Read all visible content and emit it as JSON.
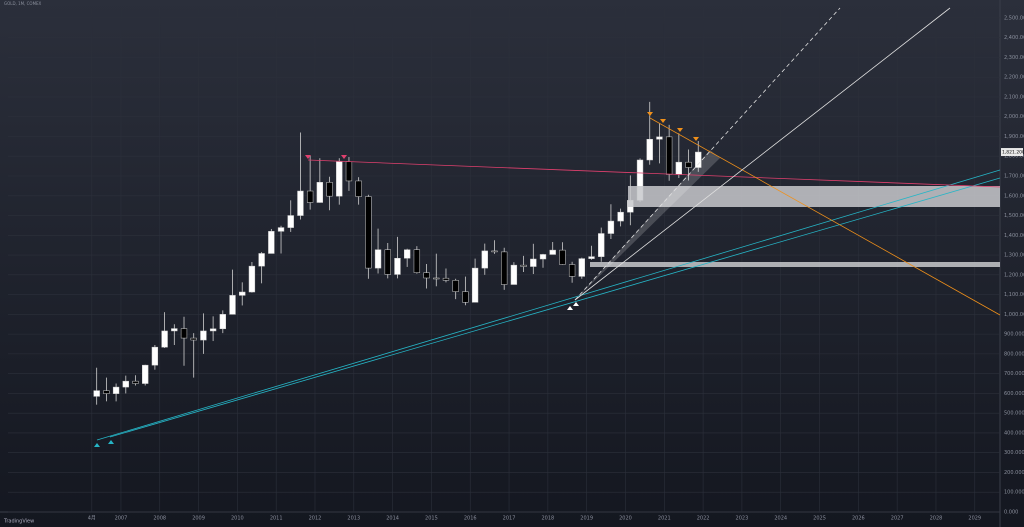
{
  "header": {
    "title": "GOLD, 1M, COMEX",
    "source": "TradingView"
  },
  "chart_data": {
    "type": "candlestick",
    "x": [
      2006.25,
      2006.5,
      2006.75,
      2007,
      2007.25,
      2007.5,
      2007.75,
      2008,
      2008.25,
      2008.5,
      2008.75,
      2009,
      2009.25,
      2009.5,
      2009.75,
      2010,
      2010.25,
      2010.5,
      2010.75,
      2011,
      2011.25,
      2011.5,
      2011.75,
      2012,
      2012.25,
      2012.5,
      2012.75,
      2013,
      2013.25,
      2013.5,
      2013.75,
      2014,
      2014.25,
      2014.5,
      2014.75,
      2015,
      2015.25,
      2015.5,
      2015.75,
      2016,
      2016.25,
      2016.5,
      2016.75,
      2017,
      2017.25,
      2017.5,
      2017.75,
      2018,
      2018.25,
      2018.5,
      2018.75,
      2019,
      2019.25,
      2019.5,
      2019.75,
      2020,
      2020.25,
      2020.5,
      2020.75,
      2021,
      2021.25,
      2021.5,
      2021.75
    ],
    "open": [
      585,
      614,
      599,
      632,
      662,
      650,
      743,
      834,
      916,
      928,
      880,
      870,
      916,
      927,
      1000,
      1096,
      1113,
      1244,
      1308,
      1420,
      1439,
      1500,
      1624,
      1566,
      1668,
      1598,
      1772,
      1675,
      1596,
      1234,
      1327,
      1202,
      1284,
      1327,
      1211,
      1184,
      1183,
      1172,
      1115,
      1061,
      1234,
      1321,
      1316,
      1151,
      1249,
      1242,
      1280,
      1303,
      1325,
      1252,
      1192,
      1282,
      1292,
      1409,
      1472,
      1517,
      1577,
      1781,
      1886,
      1898,
      1708,
      1770,
      1743
    ],
    "high": [
      730,
      680,
      650,
      690,
      692,
      745,
      845,
      1011,
      950,
      988,
      905,
      1005,
      990,
      1020,
      1226,
      1162,
      1265,
      1315,
      1432,
      1448,
      1577,
      1920,
      1803,
      1790,
      1696,
      1790,
      1796,
      1694,
      1605,
      1434,
      1361,
      1392,
      1332,
      1345,
      1255,
      1307,
      1232,
      1180,
      1191,
      1282,
      1358,
      1375,
      1337,
      1264,
      1296,
      1357,
      1306,
      1366,
      1365,
      1266,
      1287,
      1347,
      1439,
      1557,
      1535,
      1703,
      1789,
      2075,
      1965,
      1959,
      1916,
      1834,
      1877
    ],
    "low": [
      543,
      560,
      560,
      600,
      640,
      640,
      720,
      830,
      845,
      740,
      680,
      800,
      865,
      905,
      1000,
      1045,
      1110,
      1157,
      1310,
      1308,
      1417,
      1480,
      1530,
      1565,
      1527,
      1555,
      1625,
      1555,
      1180,
      1207,
      1182,
      1182,
      1240,
      1206,
      1131,
      1142,
      1162,
      1077,
      1046,
      1061,
      1200,
      1306,
      1124,
      1151,
      1214,
      1204,
      1236,
      1304,
      1250,
      1160,
      1180,
      1276,
      1266,
      1381,
      1445,
      1451,
      1568,
      1757,
      1764,
      1676,
      1690,
      1677,
      1721
    ],
    "close": [
      614,
      599,
      632,
      662,
      650,
      743,
      834,
      916,
      928,
      880,
      870,
      916,
      927,
      1000,
      1096,
      1113,
      1244,
      1308,
      1420,
      1439,
      1500,
      1624,
      1566,
      1668,
      1598,
      1772,
      1675,
      1596,
      1234,
      1327,
      1202,
      1284,
      1327,
      1211,
      1184,
      1183,
      1172,
      1115,
      1061,
      1234,
      1321,
      1316,
      1151,
      1249,
      1242,
      1280,
      1303,
      1325,
      1252,
      1192,
      1282,
      1292,
      1409,
      1472,
      1517,
      1577,
      1781,
      1886,
      1898,
      1708,
      1770,
      1743,
      1821.2
    ],
    "up_color": "#ffffff",
    "down_color": "#000000",
    "last_price": 1821.2,
    "last_price_label": "1,821.200",
    "xlim": [
      2004.09,
      2029.65
    ],
    "xticks": [
      {
        "value": 2006.25,
        "label": "4月"
      },
      2007,
      2008,
      2009,
      2010,
      2011,
      2012,
      2013,
      2014,
      2015,
      2016,
      2017,
      2018,
      2019,
      2020,
      2021,
      2022,
      2023,
      2024,
      2025,
      2026,
      2027,
      2028,
      2029
    ],
    "ylim": [
      0,
      2550
    ],
    "yticks": [
      {
        "value": 0,
        "label": "0.000"
      },
      {
        "value": 100,
        "label": "100.000"
      },
      {
        "value": 200,
        "label": "200.000"
      },
      {
        "value": 300,
        "label": "300.000"
      },
      {
        "value": 400,
        "label": "400.000"
      },
      {
        "value": 500,
        "label": "500.000"
      },
      {
        "value": 600,
        "label": "600.000"
      },
      {
        "value": 700,
        "label": "700.000"
      },
      {
        "value": 800,
        "label": "800.000"
      },
      {
        "value": 900,
        "label": "900.000"
      },
      {
        "value": 1000,
        "label": "1,000.000"
      },
      {
        "value": 1100,
        "label": "1,100.000"
      },
      {
        "value": 1200,
        "label": "1,200.000"
      },
      {
        "value": 1300,
        "label": "1,300.000"
      },
      {
        "value": 1400,
        "label": "1,400.000"
      },
      {
        "value": 1500,
        "label": "1,500.000"
      },
      {
        "value": 1600,
        "label": "1,600.000"
      },
      {
        "value": 1700,
        "label": "1,700.000"
      },
      {
        "value": 1800,
        "label": "1,800.000"
      },
      {
        "value": 1900,
        "label": "1,900.000"
      },
      {
        "value": 2000,
        "label": "2,000.000"
      },
      {
        "value": 2100,
        "label": "2,100.000"
      },
      {
        "value": 2200,
        "label": "2,200.000"
      },
      {
        "value": 2300,
        "label": "2,300.000"
      },
      {
        "value": 2400,
        "label": "2,400.000"
      },
      {
        "value": 2500,
        "label": "2,500.000"
      }
    ],
    "grid": true
  }
}
